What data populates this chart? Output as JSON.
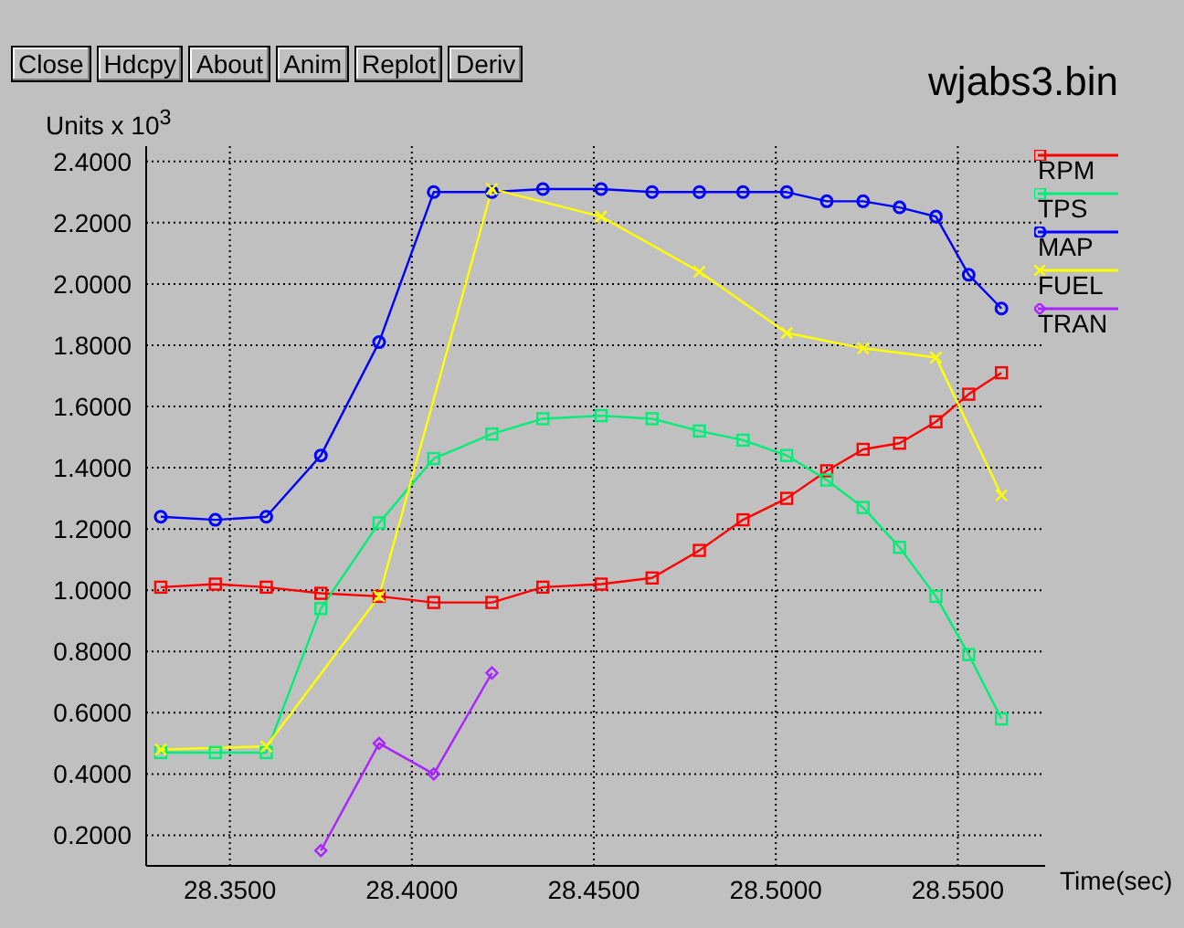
{
  "chart_data": {
    "type": "line",
    "title": "wjabs3.bin",
    "ylabel": "Units x 10$^{3}$",
    "xlabel": "Time(sec)",
    "annotations": [
      "Close",
      "Hdcpy",
      "About",
      "Anim",
      "Replot",
      "Deriv"
    ],
    "x": [
      28.331,
      28.346,
      28.36,
      28.375,
      28.391,
      28.406,
      28.422,
      28.436,
      28.452,
      28.466,
      28.479,
      28.491,
      28.503,
      28.514,
      28.524,
      28.534,
      28.544,
      28.553,
      28.562
    ],
    "series": [
      {
        "name": "RPM",
        "color": "#ff0000",
        "marker": "square",
        "values": [
          1.01,
          1.02,
          1.01,
          0.99,
          0.98,
          0.96,
          0.96,
          1.01,
          1.02,
          1.04,
          1.13,
          1.23,
          1.3,
          1.39,
          1.46,
          1.48,
          1.55,
          1.64,
          1.71
        ]
      },
      {
        "name": "TPS",
        "color": "#00ee77",
        "marker": "square",
        "values": [
          0.47,
          0.47,
          0.47,
          0.94,
          1.22,
          1.43,
          1.51,
          1.56,
          1.57,
          1.56,
          1.52,
          1.49,
          1.44,
          1.36,
          1.27,
          1.14,
          0.98,
          0.79,
          0.58
        ]
      },
      {
        "name": "MAP",
        "color": "#0000ff",
        "marker": "circle",
        "values": [
          1.24,
          1.23,
          1.24,
          1.44,
          1.81,
          2.3,
          2.3,
          2.31,
          2.31,
          2.3,
          2.3,
          2.3,
          2.3,
          2.27,
          2.27,
          2.25,
          2.22,
          2.03,
          1.92
        ]
      },
      {
        "name": "FUEL",
        "color": "#ffff00",
        "marker": "cross",
        "x": [
          28.331,
          28.36,
          28.391,
          28.422,
          28.452,
          28.479,
          28.503,
          28.524,
          28.544,
          28.562
        ],
        "values": [
          0.48,
          0.49,
          0.98,
          2.31,
          2.22,
          2.04,
          1.84,
          1.79,
          1.76,
          1.31
        ]
      },
      {
        "name": "TRAN",
        "color": "#aa22ff",
        "marker": "diamond",
        "x": [
          28.375,
          28.391,
          28.406,
          28.422
        ],
        "values": [
          0.15,
          0.5,
          0.4,
          0.73
        ]
      }
    ],
    "xlim": [
      28.327,
      28.574
    ],
    "ylim": [
      0.1,
      2.45
    ],
    "xticks": [
      {
        "value": 28.35,
        "label": "28.3500"
      },
      {
        "value": 28.4,
        "label": "28.4000"
      },
      {
        "value": 28.45,
        "label": "28.4500"
      },
      {
        "value": 28.5,
        "label": "28.5000"
      },
      {
        "value": 28.55,
        "label": "28.5500"
      }
    ],
    "yticks": [
      {
        "value": 0.2,
        "label": "0.2000"
      },
      {
        "value": 0.4,
        "label": "0.4000"
      },
      {
        "value": 0.6,
        "label": "0.6000"
      },
      {
        "value": 0.8,
        "label": "0.8000"
      },
      {
        "value": 1.0,
        "label": "1.0000"
      },
      {
        "value": 1.2,
        "label": "1.2000"
      },
      {
        "value": 1.4,
        "label": "1.4000"
      },
      {
        "value": 1.6,
        "label": "1.6000"
      },
      {
        "value": 1.8,
        "label": "1.8000"
      },
      {
        "value": 2.0,
        "label": "2.0000"
      },
      {
        "value": 2.2,
        "label": "2.2000"
      },
      {
        "value": 2.4,
        "label": "2.4000"
      }
    ],
    "grid": true,
    "legend": "right"
  }
}
